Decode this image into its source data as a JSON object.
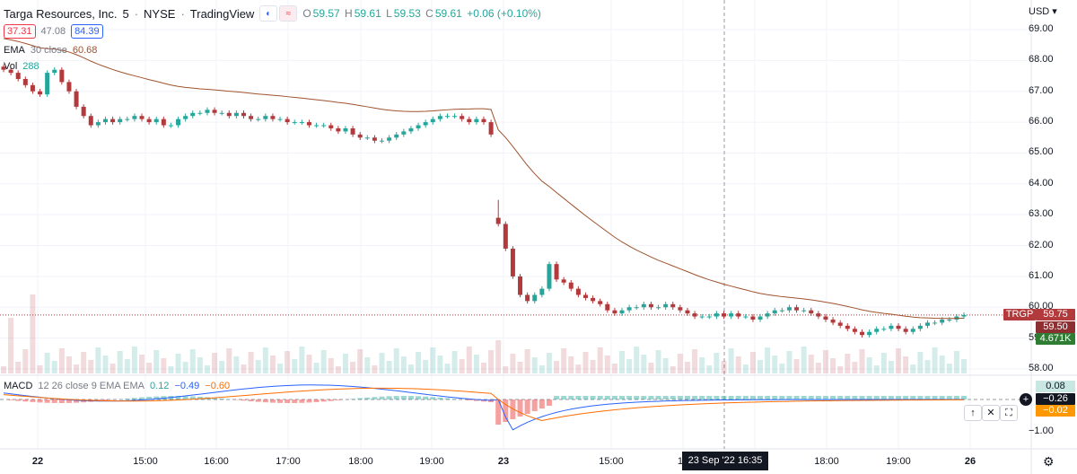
{
  "header": {
    "symbol_name": "Targa Resources, Inc.",
    "interval": "5",
    "exchange": "NYSE",
    "source": "TradingView",
    "ohlc": {
      "o_label": "O",
      "o": "59.57",
      "h_label": "H",
      "h": "59.61",
      "l_label": "L",
      "l": "59.53",
      "c_label": "C",
      "c": "59.61",
      "change": "+0.06 (+0.10%)"
    }
  },
  "order_box": {
    "sell": "37.31",
    "spread": "47.08",
    "buy": "84.39"
  },
  "indicators": {
    "ema": {
      "label": "EMA",
      "params": "30 close",
      "value": "60.68"
    },
    "vol": {
      "label": "Vol",
      "value": "288"
    }
  },
  "macd": {
    "label": "MACD",
    "params": "12 26 close 9 EMA EMA",
    "hist": "0.12",
    "macd": "−0.49",
    "signal": "−0.60"
  },
  "price_axis": {
    "currency": "USD",
    "ticks": [
      "69.00",
      "68.00",
      "67.00",
      "66.00",
      "65.00",
      "64.00",
      "63.00",
      "62.00",
      "61.00",
      "60.00",
      "59.00",
      "58.00"
    ],
    "symbol_tag": "TRGP",
    "last_price": "59.75",
    "crosshair_price": "59.50",
    "volume_tag": "4.671K"
  },
  "macd_axis": {
    "ticks": [
      "−1.00"
    ],
    "hist_tag": "0.08",
    "macd_tag": "−0.26",
    "signal_tag": "−0.02"
  },
  "time_axis": {
    "labels": [
      "22",
      "15:00",
      "16:00",
      "17:00",
      "18:00",
      "19:00",
      "23",
      "15:00",
      "16",
      "18:00",
      "19:00",
      "26"
    ],
    "crosshair_time": "23 Sep '22  16:35"
  },
  "colors": {
    "up": "#26a69a",
    "down": "#b2393c",
    "ema": "#a0522d",
    "macd_line": "#2962ff",
    "signal_line": "#ff6d00",
    "last_tag": "#b2393c",
    "vol_tag": "#2e7d32"
  },
  "icons": {
    "moon": "moon-icon",
    "approx": "approx-icon",
    "settings": "gear-icon",
    "up": "arrow-up-icon",
    "close": "close-icon",
    "maximize": "maximize-icon",
    "add": "plus-circle-icon"
  }
}
